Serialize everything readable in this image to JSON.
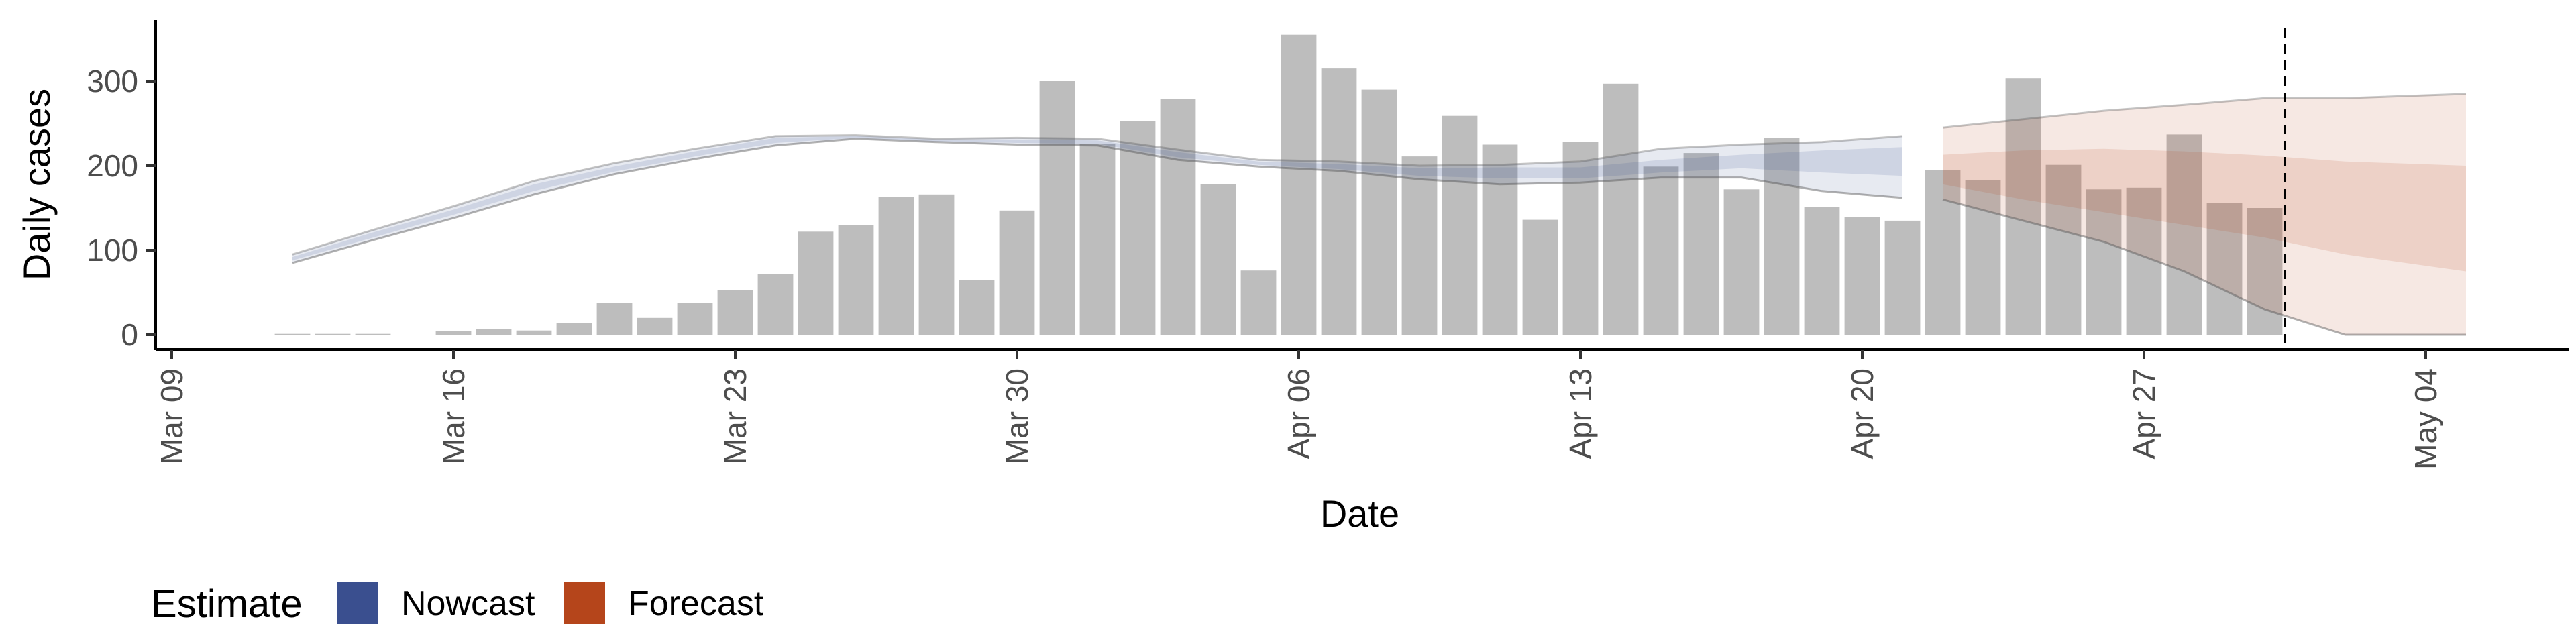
{
  "chart_data": {
    "type": "bar",
    "xlabel": "Date",
    "ylabel": "Daily cases",
    "ylim": [
      -15,
      375
    ],
    "y_ticks": [
      0,
      100,
      200,
      300
    ],
    "x_ticks": [
      "2020-03-09",
      "2020-03-16",
      "2020-03-23",
      "2020-03-30",
      "2020-04-06",
      "2020-04-13",
      "2020-04-20",
      "2020-04-27",
      "2020-05-04"
    ],
    "x_tick_labels": [
      "Mar 09",
      "Mar 16",
      "Mar 23",
      "Mar 30",
      "Apr 06",
      "Apr 13",
      "Apr 20",
      "Apr 27",
      "May 04"
    ],
    "x_range": [
      "2020-03-09",
      "2020-05-07"
    ],
    "grid": false,
    "bars": {
      "dates": [
        "2020-03-12",
        "2020-03-13",
        "2020-03-14",
        "2020-03-15",
        "2020-03-16",
        "2020-03-17",
        "2020-03-18",
        "2020-03-19",
        "2020-03-20",
        "2020-03-21",
        "2020-03-22",
        "2020-03-23",
        "2020-03-24",
        "2020-03-25",
        "2020-03-26",
        "2020-03-27",
        "2020-03-28",
        "2020-03-29",
        "2020-03-30",
        "2020-03-31",
        "2020-04-01",
        "2020-04-02",
        "2020-04-03",
        "2020-04-04",
        "2020-04-05",
        "2020-04-06",
        "2020-04-07",
        "2020-04-08",
        "2020-04-09",
        "2020-04-10",
        "2020-04-11",
        "2020-04-12",
        "2020-04-13",
        "2020-04-14",
        "2020-04-15",
        "2020-04-16",
        "2020-04-17",
        "2020-04-18",
        "2020-04-19",
        "2020-04-20",
        "2020-04-21",
        "2020-04-22",
        "2020-04-23",
        "2020-04-24",
        "2020-04-25",
        "2020-04-26",
        "2020-04-27",
        "2020-04-28",
        "2020-04-29",
        "2020-04-30"
      ],
      "values": [
        1,
        1,
        1,
        0,
        4,
        7,
        5,
        14,
        38,
        20,
        38,
        53,
        72,
        122,
        130,
        163,
        166,
        65,
        147,
        300,
        226,
        253,
        279,
        178,
        76,
        355,
        315,
        290,
        211,
        259,
        225,
        136,
        228,
        297,
        199,
        215,
        172,
        233,
        151,
        139,
        135,
        195,
        183,
        303,
        201,
        172,
        174,
        237,
        156,
        150
      ],
      "color": "#bdbdbd"
    },
    "series": [
      {
        "name": "Nowcast",
        "color": "#3a4f8f",
        "dates": [
          "2020-03-12",
          "2020-03-14",
          "2020-03-16",
          "2020-03-18",
          "2020-03-20",
          "2020-03-22",
          "2020-03-24",
          "2020-03-26",
          "2020-03-28",
          "2020-03-30",
          "2020-04-01",
          "2020-04-03",
          "2020-04-05",
          "2020-04-07",
          "2020-04-09",
          "2020-04-11",
          "2020-04-13",
          "2020-04-15",
          "2020-04-17",
          "2020-04-19",
          "2020-04-21"
        ],
        "lower90": [
          85,
          112,
          138,
          166,
          190,
          208,
          224,
          232,
          228,
          225,
          224,
          207,
          199,
          194,
          184,
          178,
          180,
          186,
          186,
          170,
          162
        ],
        "lower50": [
          88,
          115,
          142,
          170,
          193,
          211,
          227,
          233,
          229,
          227,
          226,
          210,
          201,
          196,
          188,
          185,
          185,
          192,
          197,
          192,
          188
        ],
        "median": [
          90,
          118,
          145,
          174,
          196,
          214,
          230,
          234,
          230,
          229,
          228,
          213,
          203,
          199,
          192,
          192,
          190,
          198,
          205,
          205,
          205
        ],
        "upper50": [
          92,
          121,
          148,
          178,
          199,
          217,
          233,
          235,
          231,
          231,
          230,
          216,
          205,
          202,
          197,
          198,
          198,
          207,
          213,
          218,
          222
        ],
        "upper90": [
          95,
          124,
          152,
          182,
          203,
          220,
          235,
          236,
          232,
          233,
          232,
          219,
          207,
          205,
          200,
          201,
          205,
          220,
          225,
          228,
          235
        ]
      },
      {
        "name": "Forecast",
        "color": "#b5451b",
        "dates": [
          "2020-04-22",
          "2020-04-24",
          "2020-04-26",
          "2020-04-28",
          "2020-04-30",
          "2020-05-02",
          "2020-05-05"
        ],
        "lower90": [
          160,
          135,
          110,
          75,
          30,
          0,
          0
        ],
        "lower50": [
          178,
          160,
          145,
          130,
          115,
          95,
          75
        ],
        "median": [
          195,
          195,
          190,
          190,
          187,
          185,
          180
        ],
        "upper50": [
          213,
          218,
          220,
          217,
          212,
          205,
          200
        ],
        "upper90": [
          245,
          255,
          265,
          272,
          280,
          280,
          285
        ]
      }
    ],
    "reference_line": {
      "date": "2020-04-30",
      "style": "dashed"
    },
    "legend": {
      "title": "Estimate",
      "position": "bottom-left",
      "items": [
        {
          "label": "Nowcast",
          "color": "#3a4f8f"
        },
        {
          "label": "Forecast",
          "color": "#b5451b"
        }
      ]
    }
  }
}
